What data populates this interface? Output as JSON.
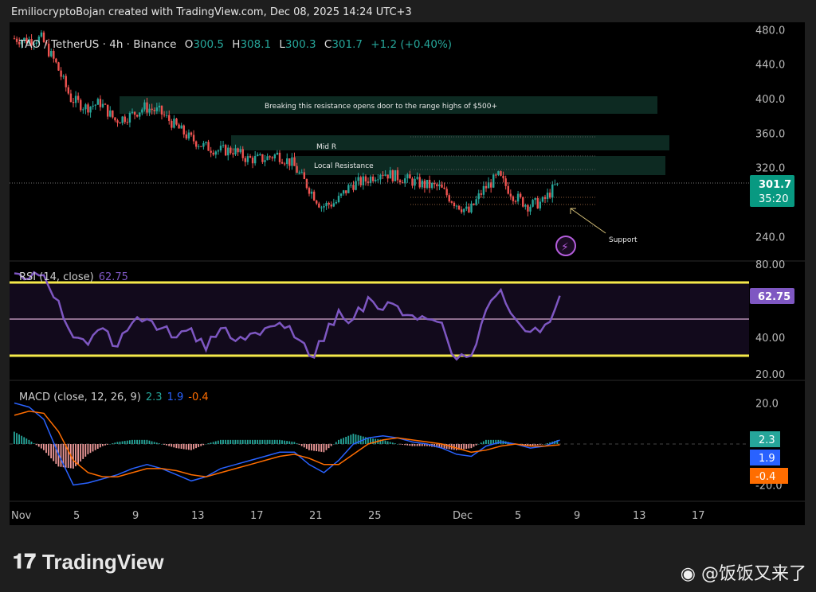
{
  "header": {
    "credit": "EmiliocryptoBojan created with TradingView.com, Dec 08, 2025 14:24 UTC+3"
  },
  "legend": {
    "symbol": "TAO / TetherUS · 4h · Binance",
    "o_label": "O",
    "o": "300.5",
    "h_label": "H",
    "h": "308.1",
    "l_label": "L",
    "l": "300.3",
    "c_label": "C",
    "c": "301.7",
    "change": "+1.2 (+0.40%)"
  },
  "price_badge": {
    "price": "301.7",
    "countdown": "35:20"
  },
  "rsi": {
    "title": "RSI (14, close)",
    "value": "62.75",
    "ticks": [
      "80.00",
      "40.00",
      "20.00"
    ]
  },
  "macd": {
    "title": "MACD (close, 12, 26, 9)",
    "hist": "2.3",
    "macd": "1.9",
    "signal": "-0.4",
    "ticks": [
      "20.0",
      "-20.0"
    ]
  },
  "annotations": {
    "box1": "Breaking this resistance opens door to the range highs of $500+",
    "box2": "Mid R",
    "box3": "Local Resistance",
    "support": "Support"
  },
  "brand": {
    "logo": "TradingView",
    "watermark": "@饭饭又来了"
  },
  "colors": {
    "up": "#26a69a",
    "down": "#ef5350",
    "rsi": "#7e57c2",
    "band": "#f5e94a",
    "macd": "#2962ff",
    "signal": "#ff6d00",
    "box": "#0d2a22"
  },
  "chart_data": {
    "type": "candlestick",
    "interval": "4h",
    "price_axis": {
      "ticks": [
        480,
        440,
        400,
        360,
        320,
        240
      ],
      "range": [
        232,
        485
      ]
    },
    "time_axis": {
      "ticks": [
        "Nov",
        "5",
        "9",
        "13",
        "17",
        "21",
        "25",
        "Dec",
        "5",
        "9",
        "13",
        "17"
      ]
    },
    "dates": [
      "Nov 1",
      "Nov 2",
      "Nov 3",
      "Nov 4",
      "Nov 5",
      "Nov 6",
      "Nov 7",
      "Nov 8",
      "Nov 9",
      "Nov 10",
      "Nov 11",
      "Nov 12",
      "Nov 13",
      "Nov 14",
      "Nov 15",
      "Nov 16",
      "Nov 17",
      "Nov 18",
      "Nov 19",
      "Nov 20",
      "Nov 21",
      "Nov 22",
      "Nov 23",
      "Nov 24",
      "Nov 25",
      "Nov 26",
      "Nov 27",
      "Nov 28",
      "Nov 29",
      "Nov 30",
      "Dec 1",
      "Dec 2",
      "Dec 3",
      "Dec 4",
      "Dec 5",
      "Dec 6",
      "Dec 7",
      "Dec 8"
    ],
    "approx_close": [
      470,
      468,
      470,
      440,
      400,
      390,
      395,
      375,
      380,
      390,
      385,
      370,
      355,
      345,
      340,
      340,
      330,
      330,
      335,
      325,
      300,
      275,
      280,
      300,
      305,
      315,
      310,
      305,
      300,
      297,
      280,
      268,
      295,
      310,
      288,
      276,
      280,
      301.7
    ],
    "rsi": [
      75,
      72,
      74,
      60,
      40,
      36,
      45,
      35,
      48,
      50,
      45,
      40,
      45,
      33,
      45,
      38,
      42,
      45,
      48,
      40,
      30,
      38,
      55,
      50,
      62,
      55,
      57,
      52,
      50,
      48,
      28,
      30,
      55,
      66,
      50,
      43,
      47,
      62.75
    ],
    "rsi_levels": [
      70,
      50,
      30
    ],
    "macd_line": [
      20,
      18,
      12,
      -5,
      -20,
      -19,
      -17,
      -15,
      -12,
      -10,
      -12,
      -15,
      -18,
      -16,
      -12,
      -10,
      -8,
      -6,
      -4,
      -4,
      -10,
      -14,
      -8,
      0,
      3,
      4,
      3,
      1,
      0,
      -2,
      -5,
      -6,
      -1,
      1,
      0,
      -2,
      -1,
      1.9
    ],
    "signal_line": [
      14,
      16,
      15,
      6,
      -8,
      -14,
      -16,
      -16,
      -14,
      -12,
      -12,
      -13,
      -15,
      -16,
      -14,
      -12,
      -10,
      -8,
      -6,
      -5,
      -7,
      -10,
      -10,
      -5,
      0,
      2,
      3,
      2,
      1,
      0,
      -2,
      -4,
      -3,
      -1,
      0,
      -1,
      -1,
      -0.4
    ]
  }
}
